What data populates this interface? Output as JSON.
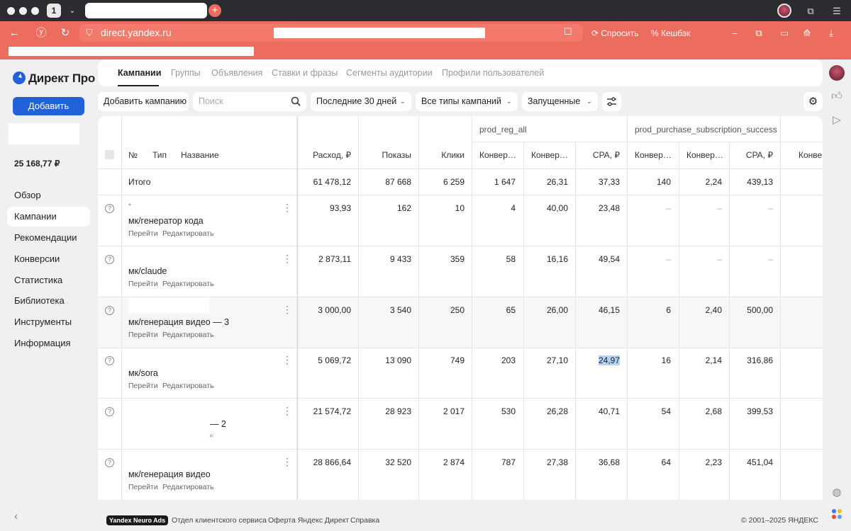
{
  "browser": {
    "tab_count": "1",
    "url": "direct.yandex.ru",
    "ask_label": "Спросить",
    "cashback_label": "Кешбэк"
  },
  "app": {
    "logo": "Директ Про",
    "add_button": "Добавить",
    "balance": "25 168,77 ₽"
  },
  "sidebar": {
    "items": [
      {
        "label": "Обзор"
      },
      {
        "label": "Кампании"
      },
      {
        "label": "Рекомендации"
      },
      {
        "label": "Конверсии"
      },
      {
        "label": "Статистика"
      },
      {
        "label": "Библиотека"
      },
      {
        "label": "Инструменты"
      },
      {
        "label": "Информация"
      }
    ]
  },
  "tabs": [
    "Кампании",
    "Группы",
    "Объявления",
    "Ставки и фразы",
    "Сегменты аудитории",
    "Профили пользователей"
  ],
  "toolbar": {
    "add_campaign": "Добавить кампанию",
    "search_placeholder": "Поиск",
    "period": "Последние 30 дней",
    "types": "Все типы кампаний",
    "status": "Запущенные"
  },
  "table": {
    "group_headers": [
      "prod_reg_all",
      "prod_purchase_subscription_success"
    ],
    "headers": {
      "num": "№",
      "type": "Тип",
      "name": "Название",
      "spend": "Расход, ₽",
      "impressions": "Показы",
      "clicks": "Клики",
      "conv1": "Конвер…",
      "conv2": "Конвер…",
      "cpa": "CPA, ₽",
      "conv3": "Конвер…",
      "conv4": "Конвер…",
      "cpa2": "CPA, ₽",
      "conv5": "Конве"
    },
    "total": {
      "label": "Итого",
      "values": [
        "61 478,12",
        "87 668",
        "6 259",
        "1 647",
        "26,31",
        "37,33",
        "140",
        "2,24",
        "439,13"
      ]
    },
    "link_go": "Перейти",
    "link_edit": "Редактировать",
    "rows": [
      {
        "mark": "*",
        "name": "мк/генератор кода",
        "values": [
          "93,93",
          "162",
          "10",
          "4",
          "40,00",
          "23,48",
          "–",
          "–",
          "–"
        ]
      },
      {
        "name": "мк/claude",
        "values": [
          "2 873,11",
          "9 433",
          "359",
          "58",
          "16,16",
          "49,54",
          "–",
          "–",
          "–"
        ]
      },
      {
        "name": "мк/генерация видео — 3",
        "values": [
          "3 000,00",
          "3 540",
          "250",
          "65",
          "26,00",
          "46,15",
          "6",
          "2,40",
          "500,00"
        ]
      },
      {
        "name": "мк/sora",
        "values": [
          "5 069,72",
          "13 090",
          "749",
          "203",
          "27,10",
          "24,97",
          "16",
          "2,14",
          "316,86"
        ]
      },
      {
        "name": "— 2",
        "mark": "»",
        "values": [
          "21 574,72",
          "28 923",
          "2 017",
          "530",
          "26,28",
          "40,71",
          "54",
          "2,68",
          "399,53"
        ]
      },
      {
        "name": "мк/генерация видео",
        "values": [
          "28 866,64",
          "32 520",
          "2 874",
          "787",
          "27,38",
          "36,68",
          "64",
          "2,23",
          "451,04"
        ]
      }
    ]
  },
  "footer": {
    "badge": "Yandex Neuro Ads",
    "links": [
      "Отдел клиентского сервиса",
      "Оферта Яндекс Директ",
      "Справка"
    ],
    "copyright": "© 2001–2025 ЯНДЕКС"
  }
}
